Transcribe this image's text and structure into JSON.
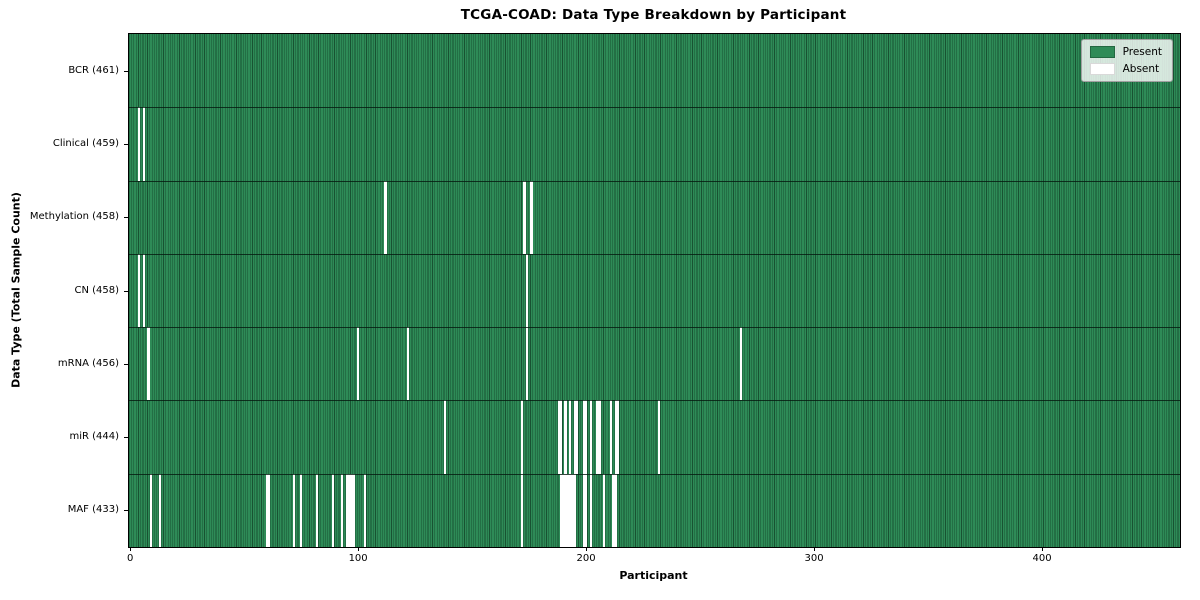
{
  "figure": {
    "title": "TCGA-COAD: Data Type Breakdown by Participant",
    "xlabel": "Participant",
    "ylabel": "Data Type (Total Sample Count)"
  },
  "legend": {
    "position": "upper right",
    "entries": [
      {
        "name": "present",
        "label": "Present",
        "color": "#2e8b57"
      },
      {
        "name": "absent",
        "label": "Absent",
        "color": "#ffffff"
      }
    ]
  },
  "colors": {
    "present": "#2e8b57",
    "absent": "#ffffff",
    "bar_edge": "rgba(10,45,26,0.6)",
    "plot_border": "#000000",
    "legend_bg": "rgba(255,255,255,0.8)",
    "legend_border": "#a0a0a0"
  },
  "chart_data": {
    "type": "heatmap",
    "title": "TCGA-COAD: Data Type Breakdown by Participant",
    "xlabel": "Participant",
    "ylabel": "Data Type (Total Sample Count)",
    "x_ticks": [
      0,
      100,
      200,
      300,
      400
    ],
    "x_range": [
      -0.5,
      460.5
    ],
    "n_participants": 461,
    "grid": false,
    "legend_entries": [
      "Present",
      "Absent"
    ],
    "rows": [
      {
        "data_type": "BCR",
        "total": 461,
        "label": "BCR (461)",
        "absent_participants": []
      },
      {
        "data_type": "Clinical",
        "total": 459,
        "label": "Clinical (459)",
        "absent_participants": [
          4,
          6
        ]
      },
      {
        "data_type": "Methylation",
        "total": 458,
        "label": "Methylation (458)",
        "absent_participants": [
          112,
          173,
          176
        ]
      },
      {
        "data_type": "CN",
        "total": 458,
        "label": "CN (458)",
        "absent_participants": [
          4,
          6,
          174
        ]
      },
      {
        "data_type": "mRNA",
        "total": 456,
        "label": "mRNA (456)",
        "absent_participants": [
          8,
          100,
          122,
          174,
          268
        ]
      },
      {
        "data_type": "miR",
        "total": 444,
        "label": "miR (444)",
        "absent_participants": [
          138,
          172,
          188,
          189,
          191,
          193,
          195,
          196,
          199,
          200,
          202,
          205,
          206,
          211,
          213,
          214,
          232
        ]
      },
      {
        "data_type": "MAF",
        "total": 433,
        "label": "MAF (433)",
        "absent_participants": [
          9,
          13,
          60,
          61,
          72,
          75,
          82,
          89,
          93,
          95,
          96,
          97,
          98,
          103,
          172,
          189,
          190,
          191,
          192,
          193,
          194,
          195,
          199,
          200,
          202,
          208,
          212,
          213
        ]
      }
    ]
  }
}
